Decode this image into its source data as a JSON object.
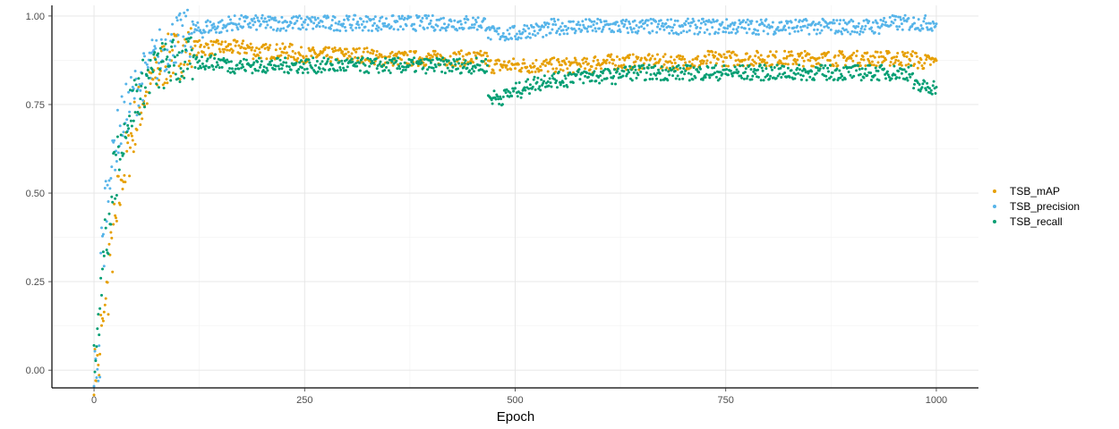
{
  "chart_data": {
    "type": "scatter",
    "title": "",
    "xlabel": "Epoch",
    "ylabel": "",
    "xlim": [
      -50,
      1050
    ],
    "ylim": [
      -0.05,
      1.03
    ],
    "x_ticks": [
      0,
      250,
      500,
      750,
      1000
    ],
    "x_tick_labels": [
      "0",
      "250",
      "500",
      "750",
      "1000"
    ],
    "y_ticks": [
      0,
      0.25,
      0.5,
      0.75,
      1.0
    ],
    "y_tick_labels": [
      "0.00",
      "0.25",
      "0.50",
      "0.75",
      "1.00"
    ],
    "grid": true,
    "legend_position": "right",
    "x_step": 5,
    "series": [
      {
        "name": "TSB_mAP",
        "color": "#E69F00",
        "x_start": 0,
        "values": [
          0.0,
          0.01,
          0.12,
          0.22,
          0.33,
          0.41,
          0.49,
          0.56,
          0.61,
          0.66,
          0.7,
          0.74,
          0.77,
          0.79,
          0.82,
          0.84,
          0.86,
          0.87,
          0.88,
          0.89,
          0.89,
          0.9,
          0.9,
          0.91,
          0.91,
          0.91,
          0.91,
          0.91,
          0.91,
          0.91,
          0.91,
          0.91,
          0.91,
          0.91,
          0.91,
          0.91,
          0.91,
          0.91,
          0.9,
          0.9,
          0.9,
          0.9,
          0.9,
          0.9,
          0.9,
          0.9,
          0.9,
          0.9,
          0.89,
          0.89,
          0.89,
          0.89,
          0.89,
          0.89,
          0.89,
          0.89,
          0.89,
          0.89,
          0.89,
          0.89,
          0.89,
          0.89,
          0.89,
          0.89,
          0.89,
          0.89,
          0.89,
          0.88,
          0.88,
          0.88,
          0.88,
          0.88,
          0.88,
          0.88,
          0.88,
          0.88,
          0.88,
          0.88,
          0.88,
          0.88,
          0.88,
          0.88,
          0.88,
          0.88,
          0.88,
          0.88,
          0.88,
          0.88,
          0.88,
          0.88,
          0.88,
          0.88,
          0.88,
          0.88,
          0.86,
          0.86,
          0.86,
          0.86,
          0.86,
          0.86,
          0.86,
          0.86,
          0.86,
          0.86,
          0.86,
          0.86,
          0.86,
          0.86,
          0.86,
          0.86,
          0.86,
          0.86,
          0.86,
          0.86,
          0.86,
          0.86,
          0.86,
          0.86,
          0.86,
          0.87,
          0.87,
          0.87,
          0.87,
          0.87,
          0.87,
          0.87,
          0.87,
          0.87,
          0.87,
          0.87,
          0.87,
          0.87,
          0.87,
          0.87,
          0.87,
          0.87,
          0.87,
          0.87,
          0.87,
          0.87,
          0.87,
          0.87,
          0.87,
          0.87,
          0.87,
          0.87,
          0.88,
          0.88,
          0.88,
          0.88,
          0.88,
          0.88,
          0.88,
          0.88,
          0.88,
          0.88,
          0.88,
          0.88,
          0.88,
          0.88,
          0.88,
          0.88,
          0.88,
          0.88,
          0.88,
          0.88,
          0.88,
          0.88,
          0.88,
          0.88,
          0.88,
          0.88,
          0.88,
          0.88,
          0.88,
          0.88,
          0.88,
          0.88,
          0.88,
          0.88,
          0.88,
          0.88,
          0.88,
          0.88,
          0.88,
          0.88,
          0.88,
          0.88,
          0.88,
          0.88,
          0.88,
          0.88,
          0.88,
          0.88,
          0.88,
          0.88,
          0.87,
          0.87,
          0.87,
          0.87,
          0.87,
          0.87,
          0.87,
          0.87,
          0.87,
          0.87,
          0.87,
          0.87
        ]
      },
      {
        "name": "TSB_precision",
        "color": "#56B4E9",
        "x_start": 0,
        "values": [
          0.0,
          0.02,
          0.35,
          0.49,
          0.58,
          0.63,
          0.67,
          0.71,
          0.74,
          0.77,
          0.79,
          0.81,
          0.83,
          0.85,
          0.87,
          0.88,
          0.9,
          0.91,
          0.92,
          0.93,
          0.94,
          0.94,
          0.95,
          0.95,
          0.96,
          0.96,
          0.96,
          0.97,
          0.97,
          0.97,
          0.97,
          0.97,
          0.98,
          0.98,
          0.98,
          0.98,
          0.98,
          0.98,
          0.98,
          0.98,
          0.98,
          0.98,
          0.98,
          0.98,
          0.98,
          0.98,
          0.98,
          0.98,
          0.98,
          0.98,
          0.98,
          0.98,
          0.98,
          0.98,
          0.98,
          0.98,
          0.98,
          0.98,
          0.98,
          0.98,
          0.98,
          0.98,
          0.98,
          0.98,
          0.98,
          0.98,
          0.98,
          0.98,
          0.98,
          0.98,
          0.98,
          0.98,
          0.98,
          0.98,
          0.98,
          0.98,
          0.98,
          0.98,
          0.98,
          0.98,
          0.98,
          0.98,
          0.98,
          0.98,
          0.98,
          0.98,
          0.98,
          0.98,
          0.98,
          0.98,
          0.98,
          0.98,
          0.98,
          0.98,
          0.95,
          0.95,
          0.95,
          0.95,
          0.95,
          0.95,
          0.95,
          0.95,
          0.96,
          0.96,
          0.96,
          0.96,
          0.96,
          0.96,
          0.96,
          0.97,
          0.97,
          0.97,
          0.97,
          0.97,
          0.97,
          0.97,
          0.97,
          0.97,
          0.97,
          0.97,
          0.97,
          0.97,
          0.97,
          0.97,
          0.97,
          0.97,
          0.97,
          0.97,
          0.97,
          0.97,
          0.97,
          0.97,
          0.97,
          0.97,
          0.97,
          0.97,
          0.97,
          0.97,
          0.97,
          0.97,
          0.97,
          0.97,
          0.97,
          0.97,
          0.97,
          0.97,
          0.97,
          0.97,
          0.97,
          0.97,
          0.97,
          0.97,
          0.97,
          0.97,
          0.97,
          0.97,
          0.97,
          0.97,
          0.97,
          0.97,
          0.97,
          0.97,
          0.97,
          0.97,
          0.97,
          0.97,
          0.97,
          0.97,
          0.97,
          0.97,
          0.97,
          0.97,
          0.97,
          0.97,
          0.97,
          0.97,
          0.97,
          0.97,
          0.97,
          0.97,
          0.97,
          0.97,
          0.97,
          0.97,
          0.97,
          0.97,
          0.97,
          0.98,
          0.98,
          0.98,
          0.98,
          0.98,
          0.98,
          0.98,
          0.98,
          0.98,
          0.98,
          0.98,
          0.98,
          0.98,
          0.98,
          0.98,
          0.98,
          0.98,
          0.98,
          0.98,
          0.98,
          0.98,
          0.98
        ]
      },
      {
        "name": "TSB_recall",
        "color": "#009E73",
        "x_start": 0,
        "values": [
          0.01,
          0.12,
          0.27,
          0.38,
          0.47,
          0.55,
          0.62,
          0.67,
          0.71,
          0.74,
          0.77,
          0.79,
          0.81,
          0.83,
          0.84,
          0.85,
          0.86,
          0.86,
          0.87,
          0.87,
          0.87,
          0.87,
          0.87,
          0.87,
          0.87,
          0.87,
          0.87,
          0.87,
          0.87,
          0.87,
          0.87,
          0.87,
          0.86,
          0.86,
          0.86,
          0.86,
          0.86,
          0.86,
          0.86,
          0.86,
          0.86,
          0.86,
          0.86,
          0.86,
          0.86,
          0.86,
          0.86,
          0.86,
          0.86,
          0.86,
          0.86,
          0.86,
          0.86,
          0.86,
          0.86,
          0.86,
          0.86,
          0.86,
          0.86,
          0.86,
          0.86,
          0.86,
          0.86,
          0.86,
          0.86,
          0.86,
          0.86,
          0.86,
          0.86,
          0.86,
          0.86,
          0.86,
          0.86,
          0.86,
          0.86,
          0.86,
          0.86,
          0.86,
          0.86,
          0.86,
          0.86,
          0.86,
          0.86,
          0.86,
          0.86,
          0.86,
          0.86,
          0.86,
          0.86,
          0.86,
          0.86,
          0.86,
          0.86,
          0.86,
          0.77,
          0.77,
          0.77,
          0.77,
          0.78,
          0.78,
          0.79,
          0.79,
          0.8,
          0.8,
          0.81,
          0.81,
          0.81,
          0.82,
          0.82,
          0.82,
          0.82,
          0.82,
          0.82,
          0.83,
          0.83,
          0.83,
          0.83,
          0.83,
          0.83,
          0.83,
          0.83,
          0.83,
          0.83,
          0.83,
          0.83,
          0.84,
          0.84,
          0.84,
          0.84,
          0.84,
          0.84,
          0.84,
          0.84,
          0.84,
          0.84,
          0.84,
          0.84,
          0.84,
          0.84,
          0.84,
          0.84,
          0.84,
          0.84,
          0.84,
          0.84,
          0.84,
          0.84,
          0.84,
          0.84,
          0.84,
          0.84,
          0.84,
          0.84,
          0.84,
          0.84,
          0.84,
          0.84,
          0.84,
          0.84,
          0.84,
          0.84,
          0.84,
          0.84,
          0.84,
          0.84,
          0.84,
          0.84,
          0.84,
          0.84,
          0.84,
          0.84,
          0.84,
          0.84,
          0.84,
          0.84,
          0.84,
          0.84,
          0.84,
          0.84,
          0.84,
          0.84,
          0.84,
          0.84,
          0.84,
          0.84,
          0.84,
          0.84,
          0.84,
          0.84,
          0.84,
          0.84,
          0.84,
          0.84,
          0.84,
          0.84,
          0.8,
          0.8,
          0.8,
          0.8,
          0.8,
          0.8,
          0.8,
          0.8,
          0.81,
          0.81,
          0.81,
          0.81
        ]
      }
    ]
  }
}
